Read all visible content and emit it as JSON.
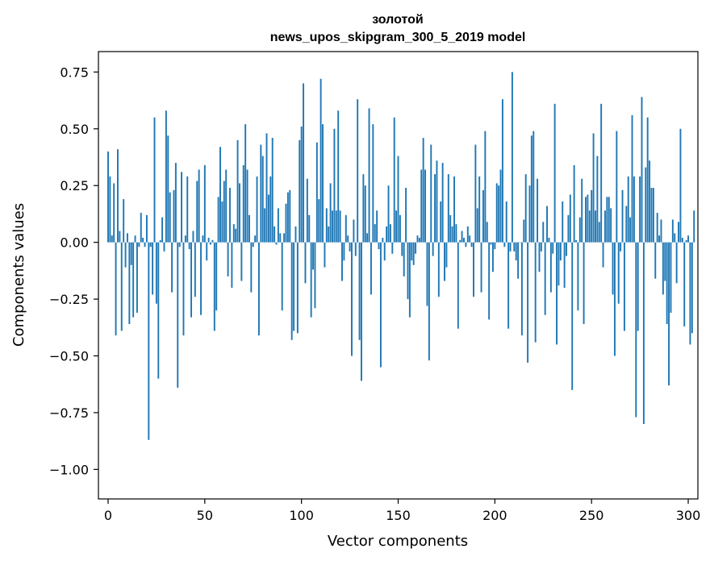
{
  "chart_data": {
    "type": "bar",
    "title": [
      "золотой",
      "news_upos_skipgram_300_5_2019 model"
    ],
    "xlabel": "Vector components",
    "ylabel": "Components values",
    "xlim": [
      -5,
      305
    ],
    "ylim": [
      -1.13,
      0.84
    ],
    "x_ticks": [
      0,
      50,
      100,
      150,
      200,
      250,
      300
    ],
    "x_tick_labels": [
      "0",
      "50",
      "100",
      "150",
      "200",
      "250",
      "300"
    ],
    "y_ticks": [
      0.75,
      0.5,
      0.25,
      0.0,
      -0.25,
      -0.5,
      -0.75,
      -1.0
    ],
    "y_tick_labels": [
      "0.75",
      "0.50",
      "0.25",
      "0.00",
      "−0.25",
      "−0.50",
      "−0.75",
      "−1.00"
    ],
    "bar_color": "#1f77b4",
    "values": [
      0.4,
      0.29,
      0.03,
      0.26,
      -0.41,
      0.41,
      0.05,
      -0.39,
      0.19,
      -0.11,
      0.04,
      -0.36,
      -0.1,
      -0.33,
      0.03,
      -0.31,
      -0.02,
      0.13,
      0.02,
      -0.02,
      0.12,
      -0.87,
      -0.02,
      -0.23,
      0.55,
      -0.27,
      -0.6,
      0.01,
      0.11,
      -0.04,
      0.58,
      0.47,
      0.22,
      -0.22,
      0.23,
      0.35,
      -0.64,
      -0.02,
      0.31,
      -0.41,
      0.03,
      0.29,
      -0.03,
      -0.33,
      0.05,
      -0.24,
      0.27,
      0.32,
      -0.32,
      0.03,
      0.34,
      -0.08,
      0.02,
      -0.01,
      0.01,
      -0.39,
      -0.3,
      0.2,
      0.42,
      0.18,
      0.27,
      0.32,
      -0.15,
      0.24,
      -0.2,
      0.08,
      0.06,
      0.45,
      0.26,
      -0.17,
      0.34,
      0.52,
      0.32,
      0.12,
      -0.22,
      -0.02,
      0.03,
      0.29,
      -0.41,
      0.43,
      0.38,
      0.15,
      0.48,
      0.21,
      0.29,
      0.46,
      0.07,
      -0.01,
      0.15,
      0.04,
      -0.3,
      0.04,
      0.17,
      0.22,
      0.23,
      -0.43,
      -0.39,
      0.07,
      -0.4,
      0.45,
      0.51,
      0.7,
      -0.18,
      0.28,
      0.12,
      -0.33,
      -0.12,
      -0.29,
      0.44,
      0.19,
      0.72,
      0.52,
      -0.11,
      0.15,
      0.07,
      0.26,
      0.14,
      0.5,
      0.14,
      0.58,
      0.14,
      -0.17,
      -0.08,
      0.12,
      0.03,
      -0.04,
      -0.5,
      0.1,
      -0.06,
      0.63,
      -0.43,
      -0.61,
      0.3,
      0.25,
      0.04,
      0.59,
      -0.23,
      0.52,
      0.08,
      0.14,
      -0.03,
      -0.55,
      0.02,
      -0.08,
      0.07,
      0.25,
      0.08,
      -0.05,
      0.55,
      0.14,
      0.38,
      0.12,
      -0.06,
      -0.15,
      0.24,
      -0.25,
      -0.33,
      -0.08,
      -0.1,
      -0.05,
      0.03,
      0.02,
      0.32,
      0.46,
      0.32,
      -0.28,
      -0.52,
      0.43,
      -0.06,
      0.3,
      0.36,
      -0.24,
      0.18,
      0.35,
      -0.17,
      -0.11,
      0.3,
      0.12,
      0.07,
      0.29,
      0.08,
      -0.38,
      0.01,
      0.05,
      0.02,
      -0.02,
      0.07,
      0.03,
      -0.02,
      -0.24,
      0.43,
      0.15,
      0.29,
      -0.22,
      0.23,
      0.49,
      0.09,
      -0.34,
      -0.01,
      -0.13,
      -0.03,
      0.26,
      0.25,
      0.32,
      0.63,
      -0.02,
      0.18,
      -0.38,
      -0.04,
      0.75,
      -0.04,
      -0.08,
      -0.16,
      0.0,
      -0.41,
      0.1,
      0.3,
      -0.53,
      0.25,
      0.47,
      0.49,
      -0.44,
      0.28,
      -0.13,
      -0.04,
      0.09,
      -0.32,
      0.16,
      0.02,
      -0.22,
      -0.05,
      0.61,
      -0.45,
      -0.19,
      -0.08,
      0.18,
      -0.2,
      -0.06,
      0.12,
      0.21,
      -0.65,
      0.34,
      0.01,
      -0.3,
      0.11,
      0.28,
      -0.36,
      0.2,
      0.21,
      0.14,
      0.23,
      0.48,
      0.14,
      0.38,
      0.09,
      0.61,
      -0.11,
      0.14,
      0.2,
      0.2,
      0.15,
      -0.23,
      -0.5,
      0.49,
      -0.27,
      -0.04,
      0.23,
      -0.39,
      0.16,
      0.29,
      0.11,
      0.56,
      0.29,
      -0.77,
      -0.39,
      0.29,
      0.64,
      -0.8,
      0.33,
      0.55,
      0.36,
      0.24,
      0.24,
      -0.16,
      0.13,
      0.03,
      0.1,
      -0.23,
      -0.17,
      -0.36,
      -0.63,
      -0.31,
      0.1,
      0.04,
      -0.18,
      0.09,
      0.5,
      0.02,
      -0.37,
      0.01,
      0.03,
      -0.45,
      -0.4,
      0.14
    ]
  }
}
